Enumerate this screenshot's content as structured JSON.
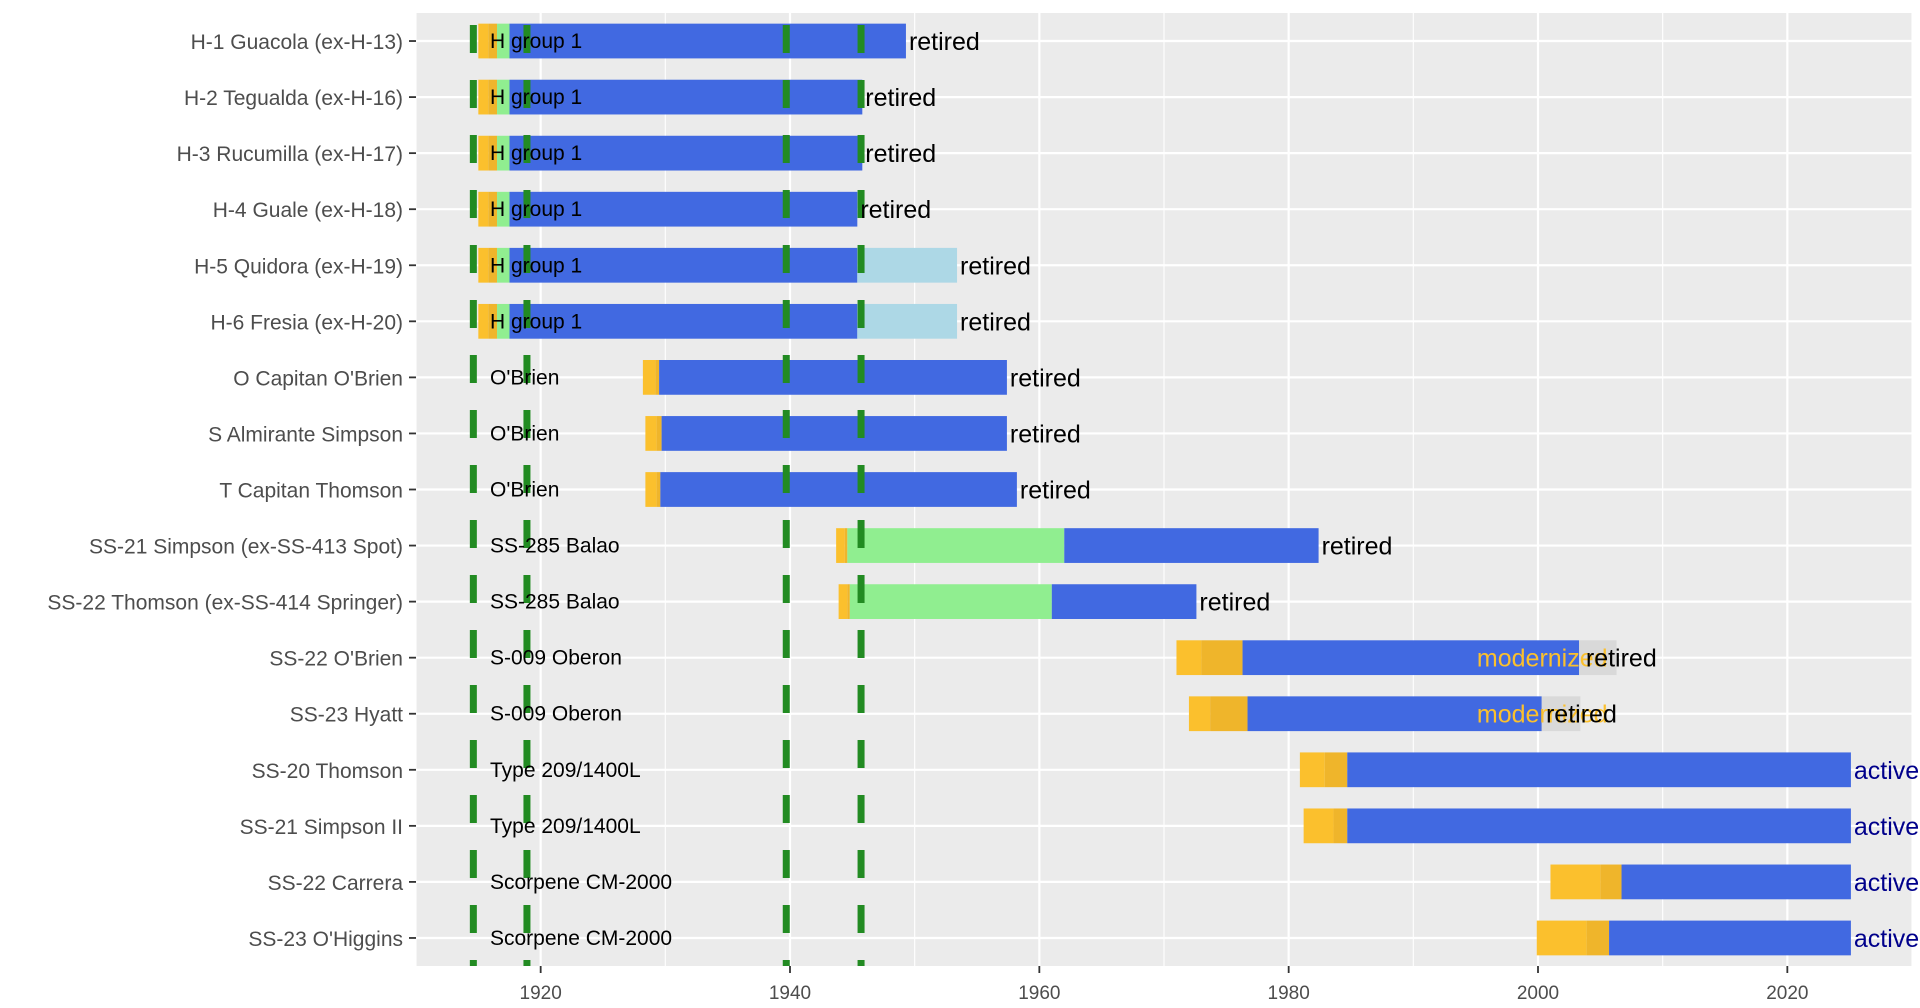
{
  "chart_data": {
    "type": "bar",
    "subtype": "horizontal-gantt",
    "title": "",
    "xlabel": "",
    "ylabel": "",
    "xlim": [
      1910,
      2030
    ],
    "x_ticks": [
      1920,
      1940,
      1960,
      1980,
      2000,
      2020
    ],
    "grid": true,
    "legend": "none",
    "colors": {
      "background": "#ebebeb",
      "grid": "#ffffff",
      "construction_early": "#fbc02d",
      "construction_late": "#efb52b",
      "transit": "#90ee90",
      "service": "#4169e1",
      "post_service": "#add8e6",
      "modernization": "#d9d9d9",
      "event_line": "#228b22",
      "text": "#000000",
      "active_text": "#00008b",
      "modernized_text": "#fbc02d"
    },
    "event_lines_x": [
      1914.6,
      1918.9,
      1939.7,
      1945.7
    ],
    "boats": [
      {
        "name": "H-1 Guacola (ex-H-13)",
        "class": "H group 1",
        "segments": [
          {
            "start": 1915.0,
            "end": 1915.8,
            "phase": "construction_early"
          },
          {
            "start": 1915.8,
            "end": 1916.5,
            "phase": "construction_late"
          },
          {
            "start": 1916.5,
            "end": 1917.5,
            "phase": "transit"
          },
          {
            "start": 1917.5,
            "end": 1949.3,
            "phase": "service"
          }
        ],
        "status": "retired",
        "status_x": 1949.3
      },
      {
        "name": "H-2 Tegualda (ex-H-16)",
        "class": "H group 1",
        "segments": [
          {
            "start": 1915.0,
            "end": 1915.8,
            "phase": "construction_early"
          },
          {
            "start": 1915.8,
            "end": 1916.5,
            "phase": "construction_late"
          },
          {
            "start": 1916.5,
            "end": 1917.5,
            "phase": "transit"
          },
          {
            "start": 1917.5,
            "end": 1945.8,
            "phase": "service"
          }
        ],
        "status": "retired",
        "status_x": 1945.8
      },
      {
        "name": "H-3 Rucumilla (ex-H-17)",
        "class": "H group 1",
        "segments": [
          {
            "start": 1915.0,
            "end": 1915.8,
            "phase": "construction_early"
          },
          {
            "start": 1915.8,
            "end": 1916.5,
            "phase": "construction_late"
          },
          {
            "start": 1916.5,
            "end": 1917.5,
            "phase": "transit"
          },
          {
            "start": 1917.5,
            "end": 1945.8,
            "phase": "service"
          }
        ],
        "status": "retired",
        "status_x": 1945.8
      },
      {
        "name": "H-4 Guale (ex-H-18)",
        "class": "H group 1",
        "segments": [
          {
            "start": 1915.0,
            "end": 1915.8,
            "phase": "construction_early"
          },
          {
            "start": 1915.8,
            "end": 1916.5,
            "phase": "construction_late"
          },
          {
            "start": 1916.5,
            "end": 1917.5,
            "phase": "transit"
          },
          {
            "start": 1917.5,
            "end": 1945.4,
            "phase": "service"
          }
        ],
        "status": "retired",
        "status_x": 1945.4
      },
      {
        "name": "H-5 Quidora (ex-H-19)",
        "class": "H group 1",
        "segments": [
          {
            "start": 1915.0,
            "end": 1915.8,
            "phase": "construction_early"
          },
          {
            "start": 1915.8,
            "end": 1916.5,
            "phase": "construction_late"
          },
          {
            "start": 1916.5,
            "end": 1917.5,
            "phase": "transit"
          },
          {
            "start": 1917.5,
            "end": 1945.4,
            "phase": "service"
          },
          {
            "start": 1945.4,
            "end": 1953.4,
            "phase": "post_service"
          }
        ],
        "status": "retired",
        "status_x": 1953.4
      },
      {
        "name": "H-6 Fresia (ex-H-20)",
        "class": "H group 1",
        "segments": [
          {
            "start": 1915.0,
            "end": 1915.8,
            "phase": "construction_early"
          },
          {
            "start": 1915.8,
            "end": 1916.5,
            "phase": "construction_late"
          },
          {
            "start": 1916.5,
            "end": 1917.5,
            "phase": "transit"
          },
          {
            "start": 1917.5,
            "end": 1945.4,
            "phase": "service"
          },
          {
            "start": 1945.4,
            "end": 1953.4,
            "phase": "post_service"
          }
        ],
        "status": "retired",
        "status_x": 1953.4
      },
      {
        "name": "O Capitan O'Brien",
        "class": "O'Brien",
        "segments": [
          {
            "start": 1928.2,
            "end": 1929.2,
            "phase": "construction_early"
          },
          {
            "start": 1929.2,
            "end": 1929.5,
            "phase": "construction_late"
          },
          {
            "start": 1929.5,
            "end": 1957.4,
            "phase": "service"
          }
        ],
        "status": "retired",
        "status_x": 1957.4
      },
      {
        "name": "S Almirante Simpson",
        "class": "O'Brien",
        "segments": [
          {
            "start": 1928.4,
            "end": 1929.3,
            "phase": "construction_early"
          },
          {
            "start": 1929.3,
            "end": 1929.7,
            "phase": "construction_late"
          },
          {
            "start": 1929.7,
            "end": 1957.4,
            "phase": "service"
          }
        ],
        "status": "retired",
        "status_x": 1957.4
      },
      {
        "name": "T Capitan Thomson",
        "class": "O'Brien",
        "segments": [
          {
            "start": 1928.4,
            "end": 1929.3,
            "phase": "construction_early"
          },
          {
            "start": 1929.3,
            "end": 1929.6,
            "phase": "construction_late"
          },
          {
            "start": 1929.6,
            "end": 1958.2,
            "phase": "service"
          }
        ],
        "status": "retired",
        "status_x": 1958.2
      },
      {
        "name": "SS-21 Simpson (ex-SS-413 Spot)",
        "class": "SS-285 Balao",
        "segments": [
          {
            "start": 1943.7,
            "end": 1944.4,
            "phase": "construction_early"
          },
          {
            "start": 1944.4,
            "end": 1944.6,
            "phase": "construction_late"
          },
          {
            "start": 1944.6,
            "end": 1962.0,
            "phase": "transit"
          },
          {
            "start": 1962.0,
            "end": 1982.4,
            "phase": "service"
          }
        ],
        "status": "retired",
        "status_x": 1982.4
      },
      {
        "name": "SS-22 Thomson (ex-SS-414 Springer)",
        "class": "SS-285 Balao",
        "segments": [
          {
            "start": 1943.9,
            "end": 1944.6,
            "phase": "construction_early"
          },
          {
            "start": 1944.6,
            "end": 1944.8,
            "phase": "construction_late"
          },
          {
            "start": 1944.8,
            "end": 1961.0,
            "phase": "transit"
          },
          {
            "start": 1961.0,
            "end": 1972.6,
            "phase": "service"
          }
        ],
        "status": "retired",
        "status_x": 1972.6
      },
      {
        "name": "SS-22 O'Brien",
        "class": "S-009 Oberon",
        "segments": [
          {
            "start": 1971.0,
            "end": 1973.0,
            "phase": "construction_early"
          },
          {
            "start": 1973.0,
            "end": 1976.3,
            "phase": "construction_late"
          },
          {
            "start": 1976.3,
            "end": 2003.3,
            "phase": "service"
          },
          {
            "start": 2003.3,
            "end": 2006.3,
            "phase": "modernization"
          }
        ],
        "status": "retired",
        "status_x": 2003.6,
        "note": "modernized",
        "note_x": 1995.1
      },
      {
        "name": "SS-23 Hyatt",
        "class": "S-009 Oberon",
        "segments": [
          {
            "start": 1972.0,
            "end": 1973.7,
            "phase": "construction_early"
          },
          {
            "start": 1973.7,
            "end": 1976.7,
            "phase": "construction_late"
          },
          {
            "start": 1976.7,
            "end": 2000.3,
            "phase": "service"
          },
          {
            "start": 2000.3,
            "end": 2003.4,
            "phase": "modernization"
          }
        ],
        "status": "retired",
        "status_x": 2000.4,
        "note": "modernized",
        "note_x": 1995.1
      },
      {
        "name": "SS-20 Thomson",
        "class": "Type 209/1400L",
        "segments": [
          {
            "start": 1980.9,
            "end": 1982.9,
            "phase": "construction_early"
          },
          {
            "start": 1982.9,
            "end": 1984.7,
            "phase": "construction_late"
          },
          {
            "start": 1984.7,
            "end": 2025.1,
            "phase": "service"
          }
        ],
        "status": "active",
        "status_x": 2025.1
      },
      {
        "name": "SS-21 Simpson II",
        "class": "Type 209/1400L",
        "segments": [
          {
            "start": 1981.2,
            "end": 1983.6,
            "phase": "construction_early"
          },
          {
            "start": 1983.6,
            "end": 1984.7,
            "phase": "construction_late"
          },
          {
            "start": 1984.7,
            "end": 2025.1,
            "phase": "service"
          }
        ],
        "status": "active",
        "status_x": 2025.1
      },
      {
        "name": "SS-22 Carrera",
        "class": "Scorpene CM-2000",
        "segments": [
          {
            "start": 2001.0,
            "end": 2005.0,
            "phase": "construction_early"
          },
          {
            "start": 2005.0,
            "end": 2006.7,
            "phase": "construction_late"
          },
          {
            "start": 2006.7,
            "end": 2025.1,
            "phase": "service"
          }
        ],
        "status": "active",
        "status_x": 2025.1
      },
      {
        "name": "SS-23 O'Higgins",
        "class": "Scorpene CM-2000",
        "segments": [
          {
            "start": 1999.9,
            "end": 2003.9,
            "phase": "construction_early"
          },
          {
            "start": 2003.9,
            "end": 2005.7,
            "phase": "construction_late"
          },
          {
            "start": 2005.7,
            "end": 2025.1,
            "phase": "service"
          }
        ],
        "status": "active",
        "status_x": 2025.1
      }
    ]
  }
}
